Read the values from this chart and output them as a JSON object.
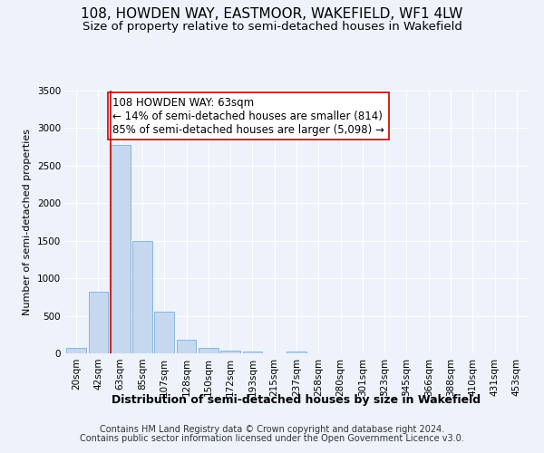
{
  "title": "108, HOWDEN WAY, EASTMOOR, WAKEFIELD, WF1 4LW",
  "subtitle": "Size of property relative to semi-detached houses in Wakefield",
  "xlabel": "Distribution of semi-detached houses by size in Wakefield",
  "ylabel": "Number of semi-detached properties",
  "categories": [
    "20sqm",
    "42sqm",
    "63sqm",
    "85sqm",
    "107sqm",
    "128sqm",
    "150sqm",
    "172sqm",
    "193sqm",
    "215sqm",
    "237sqm",
    "258sqm",
    "280sqm",
    "301sqm",
    "323sqm",
    "345sqm",
    "366sqm",
    "388sqm",
    "410sqm",
    "431sqm",
    "453sqm"
  ],
  "bar_heights": [
    75,
    820,
    2780,
    1500,
    555,
    185,
    75,
    40,
    30,
    0,
    30,
    0,
    0,
    0,
    0,
    0,
    0,
    0,
    0,
    0,
    0
  ],
  "bar_color": "#c5d8f0",
  "bar_edge_color": "#7aafd4",
  "property_line_color": "#cc0000",
  "property_bin_index": 2,
  "annotation_line1": "108 HOWDEN WAY: 63sqm",
  "annotation_line2": "← 14% of semi-detached houses are smaller (814)",
  "annotation_line3": "85% of semi-detached houses are larger (5,098) →",
  "annotation_box_color": "#ffffff",
  "annotation_box_edge": "#cc0000",
  "ylim": [
    0,
    3500
  ],
  "yticks": [
    0,
    500,
    1000,
    1500,
    2000,
    2500,
    3000,
    3500
  ],
  "background_color": "#eef2fa",
  "grid_color": "#ffffff",
  "footer_line1": "Contains HM Land Registry data © Crown copyright and database right 2024.",
  "footer_line2": "Contains public sector information licensed under the Open Government Licence v3.0.",
  "title_fontsize": 11,
  "subtitle_fontsize": 9.5,
  "xlabel_fontsize": 9,
  "ylabel_fontsize": 8,
  "tick_fontsize": 7.5,
  "annotation_fontsize": 8.5,
  "footer_fontsize": 7
}
